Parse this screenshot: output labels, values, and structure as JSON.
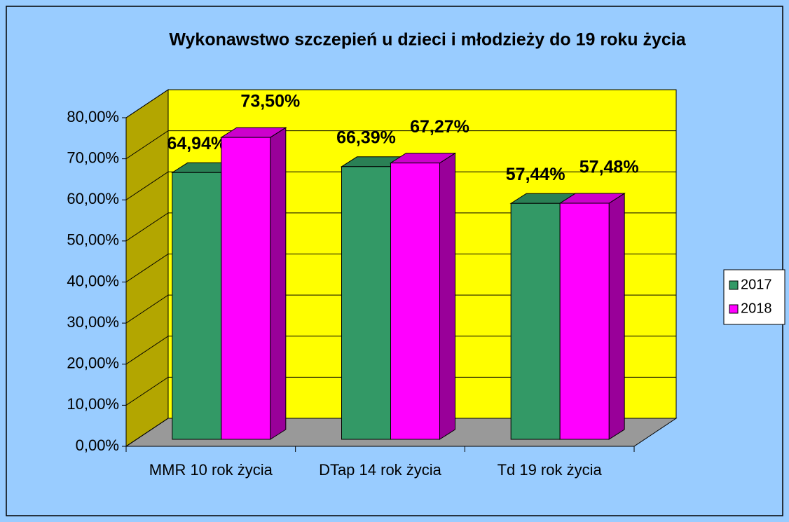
{
  "chart_data": {
    "type": "bar3d",
    "title": "Wykonawstwo szczepień u dzieci i młodzieży do 19 roku życia",
    "categories": [
      "MMR 10 rok życia",
      "DTap 14 rok życia",
      "Td 19 rok życia"
    ],
    "series": [
      {
        "name": "2017",
        "color": "#339966",
        "values": [
          64.94,
          66.39,
          57.44
        ],
        "value_labels": [
          "64,94%",
          "66,39%",
          "57,44%"
        ]
      },
      {
        "name": "2018",
        "color": "#ff00ff",
        "values": [
          73.5,
          67.27,
          57.48
        ],
        "value_labels": [
          "73,50%",
          "67,27%",
          "57,48%"
        ]
      }
    ],
    "ylim": [
      0,
      80
    ],
    "yticks": [
      {
        "value": 0,
        "label": "0,00%"
      },
      {
        "value": 10,
        "label": "10,00%"
      },
      {
        "value": 20,
        "label": "20,00%"
      },
      {
        "value": 30,
        "label": "30,00%"
      },
      {
        "value": 40,
        "label": "40,00%"
      },
      {
        "value": 50,
        "label": "50,00%"
      },
      {
        "value": 60,
        "label": "60,00%"
      },
      {
        "value": 70,
        "label": "70,00%"
      },
      {
        "value": 80,
        "label": "80,00%"
      }
    ],
    "grid": true,
    "legend": "right"
  }
}
